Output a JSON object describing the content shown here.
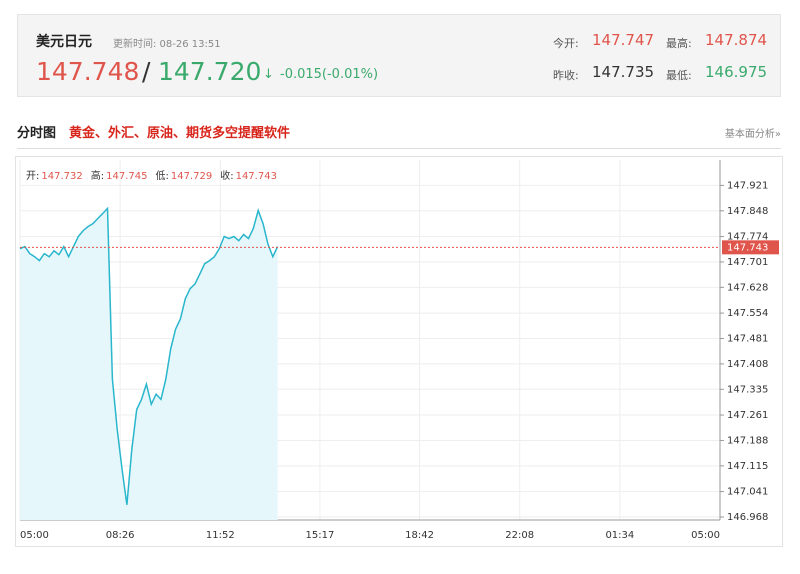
{
  "header": {
    "name": "美元日元",
    "update_time": "更新时间: 08-26 13:51",
    "price": "147.748",
    "separator": "/",
    "price2": "147.720",
    "arrow": "↓",
    "change": "-0.015(-0.01%)",
    "open_label": "今开:",
    "open": "147.747",
    "high_label": "最高:",
    "high": "147.874",
    "prev_close_label": "昨收:",
    "prev_close": "147.735",
    "low_label": "最低:",
    "low": "146.975"
  },
  "tabs": {
    "title": "分时图",
    "promo": "黄金、外汇、原油、期货多空提醒软件",
    "link": "基本面分析»"
  },
  "chart_data": {
    "type": "line",
    "info": [
      {
        "label": "开:",
        "value": 147.732
      },
      {
        "label": "高:",
        "value": 147.745
      },
      {
        "label": "低:",
        "value": 147.729
      },
      {
        "label": "收:",
        "value": 147.743
      }
    ],
    "series": [
      {
        "color": "#29b6cc",
        "area_color": "#e6f7fb",
        "x": [
          "05:00",
          "05:10",
          "05:20",
          "05:30",
          "05:40",
          "05:50",
          "06:00",
          "06:10",
          "06:20",
          "06:30",
          "06:40",
          "06:50",
          "07:00",
          "07:10",
          "07:20",
          "07:30",
          "07:40",
          "07:50",
          "08:00",
          "08:10",
          "08:20",
          "08:30",
          "08:40",
          "08:50",
          "09:00",
          "09:10",
          "09:20",
          "09:30",
          "09:40",
          "09:50",
          "10:00",
          "10:10",
          "10:20",
          "10:30",
          "10:40",
          "10:50",
          "11:00",
          "11:10",
          "11:20",
          "11:30",
          "11:40",
          "11:50",
          "12:00",
          "12:10",
          "12:20",
          "12:30",
          "12:40",
          "12:50",
          "13:00",
          "13:10",
          "13:20",
          "13:30",
          "13:40",
          "13:50"
        ],
        "values": [
          147.739,
          147.745,
          147.725,
          147.716,
          147.705,
          147.725,
          147.716,
          147.733,
          147.722,
          147.745,
          147.716,
          147.745,
          147.774,
          147.791,
          147.803,
          147.811,
          147.826,
          147.84,
          147.855,
          147.364,
          147.22,
          147.104,
          147.003,
          147.162,
          147.277,
          147.306,
          147.35,
          147.292,
          147.321,
          147.306,
          147.364,
          147.451,
          147.508,
          147.537,
          147.595,
          147.624,
          147.638,
          147.667,
          147.696,
          147.705,
          147.716,
          147.739,
          147.774,
          147.768,
          147.774,
          147.762,
          147.78,
          147.768,
          147.797,
          147.849,
          147.811,
          147.753,
          147.716,
          147.745
        ]
      }
    ],
    "xticks": [
      "05:00",
      "08:26",
      "11:52",
      "15:17",
      "18:42",
      "22:08",
      "01:34",
      "05:00"
    ],
    "ylim": [
      146.968,
      147.994
    ],
    "yticks": [
      147.921,
      147.848,
      147.774,
      147.701,
      147.628,
      147.554,
      147.481,
      147.408,
      147.335,
      147.261,
      147.188,
      147.115,
      147.041,
      146.968
    ],
    "grid": true,
    "last_color": "#e0554b"
  }
}
